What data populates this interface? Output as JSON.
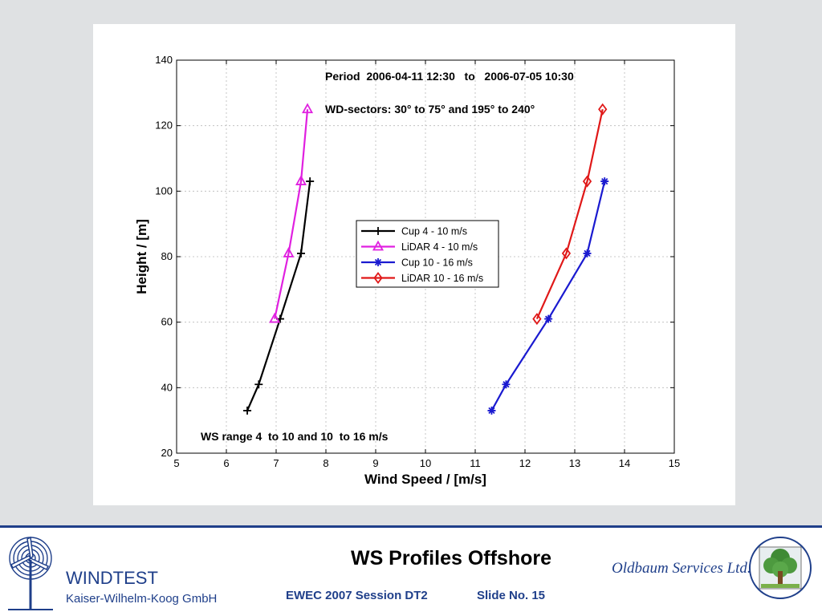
{
  "chart_data": {
    "type": "line",
    "title": "",
    "xlabel": "Wind Speed / [m/s]",
    "ylabel": "Height / [m]",
    "xlim": [
      5,
      15
    ],
    "ylim": [
      20,
      140
    ],
    "xticks": [
      "5",
      "6",
      "7",
      "8",
      "9",
      "10",
      "11",
      "12",
      "13",
      "14",
      "15"
    ],
    "yticks": [
      "20",
      "40",
      "60",
      "80",
      "100",
      "120",
      "140"
    ],
    "grid": true,
    "legend_position": "center",
    "annotations": [
      "Period  2006-04-11 12:30   to   2006-07-05 10:30",
      "WD-sectors: 30° to 75° and 195° to 240°",
      "WS range 4  to 10 and 10  to 16 m/s"
    ],
    "series": [
      {
        "name": "Cup 4 - 10 m/s",
        "color": "#000000",
        "marker": "plus",
        "points": [
          [
            6.42,
            33
          ],
          [
            6.65,
            41
          ],
          [
            7.08,
            61
          ],
          [
            7.5,
            81
          ],
          [
            7.68,
            103
          ]
        ]
      },
      {
        "name": "LiDAR 4 - 10 m/s",
        "color": "#e020e0",
        "marker": "triangle",
        "points": [
          [
            6.97,
            61
          ],
          [
            7.25,
            81
          ],
          [
            7.5,
            103
          ],
          [
            7.63,
            125
          ]
        ]
      },
      {
        "name": "Cup 10 - 16 m/s",
        "color": "#1a1ad0",
        "marker": "star",
        "points": [
          [
            11.33,
            33
          ],
          [
            11.62,
            41
          ],
          [
            12.47,
            61
          ],
          [
            13.25,
            81
          ],
          [
            13.6,
            103
          ]
        ]
      },
      {
        "name": "LiDAR 10 - 16 m/s",
        "color": "#e01818",
        "marker": "diamond",
        "points": [
          [
            12.24,
            61
          ],
          [
            12.83,
            81
          ],
          [
            13.25,
            103
          ],
          [
            13.56,
            125
          ]
        ]
      }
    ]
  },
  "footer": {
    "company": "WINDTEST",
    "company_sub": "Kaiser-Wilhelm-Koog GmbH",
    "title": "WS Profiles Offshore",
    "session": "EWEC 2007 Session DT2",
    "slide_no": "Slide No. 15",
    "partner": "Oldbaum Services Ltd."
  }
}
